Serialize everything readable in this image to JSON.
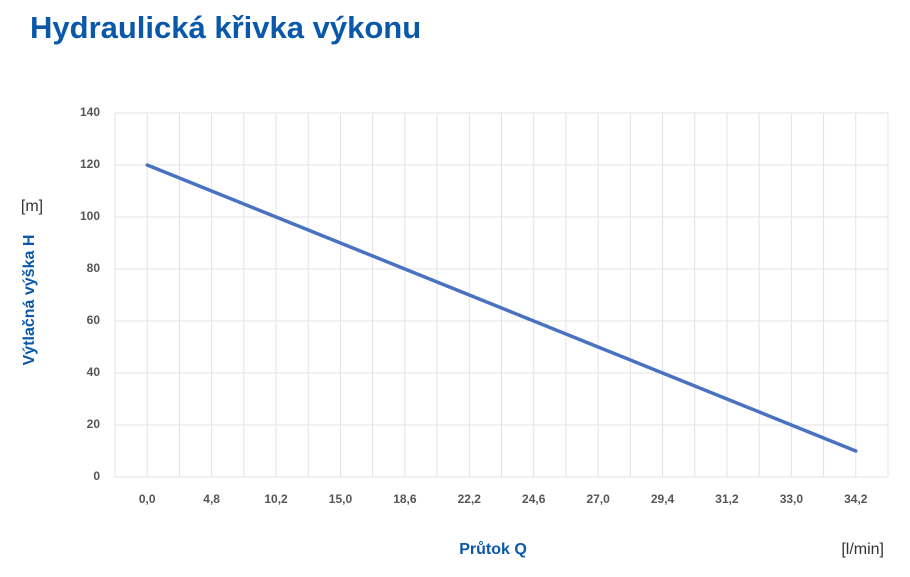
{
  "chart_data": {
    "type": "line",
    "title": "Hydraulická křivka výkonu",
    "y_label": "Výtlačná výška H",
    "y_unit": "[m]",
    "x_label": "Průtok Q",
    "x_unit": "[l/min]",
    "categories": [
      "0,0",
      "4,8",
      "10,2",
      "15,0",
      "18,6",
      "22,2",
      "24,6",
      "27,0",
      "29,4",
      "31,2",
      "33,0",
      "34,2"
    ],
    "series": [
      {
        "color": "#4a72c0",
        "values": [
          120,
          110,
          100,
          90,
          80,
          70,
          60,
          50,
          40,
          30,
          20,
          10
        ]
      }
    ],
    "ylim": [
      0,
      140
    ],
    "yticks": [
      0,
      20,
      40,
      60,
      80,
      100,
      120,
      140
    ],
    "grid": true
  }
}
